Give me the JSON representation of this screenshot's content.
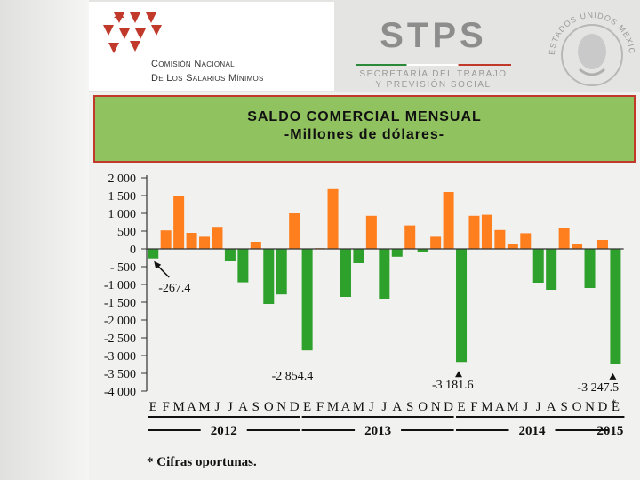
{
  "header": {
    "org_line1": "Comisión Nacional",
    "org_line2": "De Los Salarios Mínimos",
    "stps_title": "STPS",
    "stps_sub1": "SECRETARÍA DEL TRABAJO",
    "stps_sub2": "Y PREVISIÓN SOCIAL",
    "seal_text": "ESTADOS UNIDOS MEXICANOS"
  },
  "title": {
    "line1": "SALDO COMERCIAL MENSUAL",
    "line2": "-Millones de dólares-"
  },
  "colors": {
    "positive": "#ff7f1e",
    "negative": "#2ea02c",
    "accent_red": "#c0392b",
    "title_bg": "#91c260"
  },
  "chart_data": {
    "type": "bar",
    "title": "SALDO COMERCIAL MENSUAL",
    "subtitle": "-Millones de dólares-",
    "ylim": [
      -4000,
      2000
    ],
    "y_ticks": [
      "2 000",
      "1 500",
      "1 000",
      "500",
      "0",
      "- 500",
      "-1 000",
      "-1 500",
      "-2 000",
      "-2 500",
      "-3 000",
      "-3 500",
      "-4 000"
    ],
    "y_tick_values": [
      2000,
      1500,
      1000,
      500,
      0,
      -500,
      -1000,
      -1500,
      -2000,
      -2500,
      -3000,
      -3500,
      -4000
    ],
    "month_labels": [
      "E",
      "F",
      "M",
      "A",
      "M",
      "J",
      "J",
      "A",
      "S",
      "O",
      "N",
      "D",
      "E",
      "F",
      "M",
      "A",
      "M",
      "J",
      "J",
      "A",
      "S",
      "O",
      "N",
      "D",
      "E",
      "F",
      "M",
      "A",
      "M",
      "J",
      "J",
      "A",
      "S",
      "O",
      "N",
      "D",
      "E"
    ],
    "years": [
      "2012",
      "2013",
      "2014",
      "2015"
    ],
    "year_month_counts": [
      12,
      12,
      12,
      1
    ],
    "values": [
      -267.4,
      520,
      1480,
      450,
      340,
      620,
      -350,
      -940,
      200,
      -1550,
      -1280,
      1000,
      -2854.4,
      20,
      1680,
      -1350,
      -400,
      930,
      -1400,
      -220,
      660,
      -90,
      340,
      1600,
      -3181.6,
      930,
      960,
      530,
      140,
      440,
      -950,
      -1150,
      600,
      150,
      -1100,
      250,
      -3247.5
    ],
    "annotations": [
      {
        "text": "-267.4",
        "index": 0
      },
      {
        "text": "-2 854.4",
        "index": 12
      },
      {
        "text": "-3 181.6",
        "index": 24
      },
      {
        "text": "-3 247.5",
        "index": 36
      }
    ],
    "star_label": "*",
    "grid": false
  },
  "footnote": "* Cifras oportunas."
}
